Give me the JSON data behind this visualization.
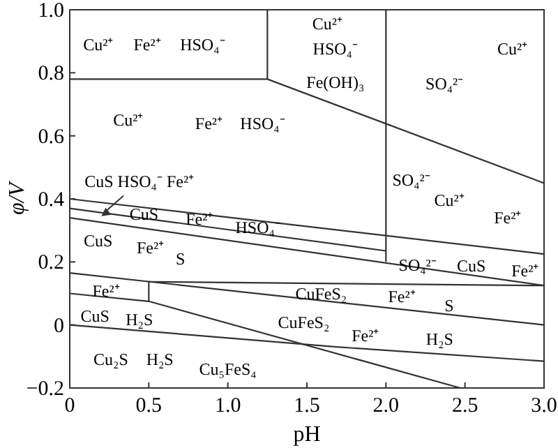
{
  "chart_data": {
    "type": "line",
    "xlabel": "pH",
    "ylabel": "φ/V",
    "xlim": [
      0,
      3
    ],
    "ylim": [
      -0.2,
      1
    ],
    "xticks": [
      0,
      0.5,
      {
        "value": 1,
        "label": "1.0"
      },
      1.5,
      {
        "value": 2,
        "label": "2.0"
      },
      2.5,
      {
        "value": 3,
        "label": "3.0"
      }
    ],
    "yticks": [
      {
        "value": -0.2,
        "label": "−0.2"
      },
      0,
      0.2,
      0.4,
      0.6,
      0.8,
      {
        "value": 1,
        "label": "1.0"
      }
    ],
    "grid": false,
    "marker": "none",
    "line_style": "solid",
    "series": [
      {
        "color": "#333333",
        "x": [
          0,
          1.25,
          3
        ],
        "values": [
          0.78,
          0.78,
          0.45
        ]
      },
      {
        "color": "#333333",
        "x": [
          1.25,
          1.25
        ],
        "values": [
          0.78,
          1
        ]
      },
      {
        "color": "#333333",
        "x": [
          2,
          2
        ],
        "values": [
          1,
          0.2
        ]
      },
      {
        "color": "#333333",
        "x": [
          0,
          3
        ],
        "values": [
          0.4,
          0.225
        ]
      },
      {
        "color": "#333333",
        "x": [
          0,
          2
        ],
        "values": [
          0.37,
          0.235
        ]
      },
      {
        "color": "#333333",
        "x": [
          0,
          3
        ],
        "values": [
          0.34,
          0.125
        ]
      },
      {
        "color": "#333333",
        "x": [
          0,
          3
        ],
        "values": [
          0.165,
          0
        ]
      },
      {
        "color": "#333333",
        "x": [
          0.5,
          3
        ],
        "values": [
          0.137,
          0.125
        ]
      },
      {
        "color": "#333333",
        "x": [
          0.5,
          0.5
        ],
        "values": [
          0.075,
          0.137
        ]
      },
      {
        "color": "#333333",
        "x": [
          0,
          0.5,
          2.47
        ],
        "values": [
          0.1,
          0.075,
          -0.2
        ]
      },
      {
        "color": "#333333",
        "x": [
          0,
          1.7,
          3
        ],
        "values": [
          0,
          -0.07,
          -0.115
        ]
      }
    ],
    "annotations": [
      "Cu²⁺",
      "Fe²⁺",
      "HSO₄⁻",
      "Cu²⁺",
      "HSO₄⁻",
      "Fe(OH)₃",
      "Cu²⁺",
      "SO₄²⁻",
      "Cu²⁺",
      "Fe²⁺",
      "HSO₄⁻",
      "SO₄²⁻",
      "Cu²⁺",
      "Fe²⁺",
      "CuS HSO₄⁻ Fe²⁺",
      "CuS",
      "Fe²⁺",
      "HSO₄⁻",
      "CuS",
      "Fe²⁺",
      "S",
      "SO₄²⁻",
      "CuS",
      "Fe²⁺",
      "Fe²⁺",
      "CuFeS₂",
      "Fe²⁺",
      "S",
      "CuS",
      "H₂S",
      "CuFeS₂",
      "Fe²⁺",
      "H₂S",
      "Cu₂S",
      "H₂S",
      "Cu₅FeS₄"
    ]
  }
}
